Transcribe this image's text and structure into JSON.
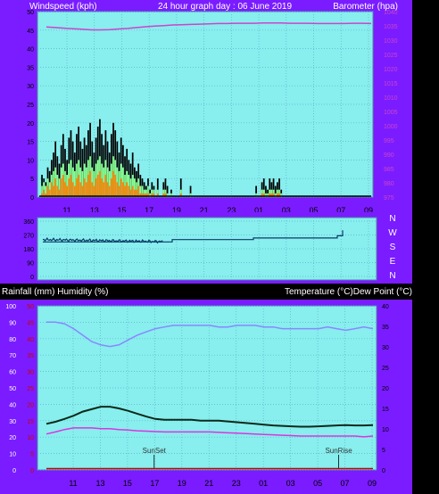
{
  "colors": {
    "frame": "#7a1cff",
    "plot_bg": "#88eeee",
    "grid": "#5fb3c6",
    "axis_text": "#000000",
    "header_text": "#ffffff",
    "pressure": "#cc44cc",
    "gust": "#000000",
    "wind_avg": "#88ff88",
    "wind_low": "#ff8800",
    "wind_dir": "#0b3a66",
    "rain": "#cc0000",
    "humidity": "#8888ff",
    "temperature": "#0a2a1a",
    "dewpoint": "#dd33dd"
  },
  "header": {
    "left": "Windspeed (kph)",
    "center": "24 hour graph day : 06 June 2019",
    "right": "Barometer (hpa)"
  },
  "compass": [
    "N",
    "W",
    "S",
    "E",
    "N"
  ],
  "panel3_header": {
    "left": "Rainfall (mm)  Humidity (%)",
    "right": "Temperature (°C)Dew Point (°C)"
  },
  "chart_data": [
    {
      "type": "bar",
      "name": "wind-pressure",
      "x_ticks": [
        "11",
        "13",
        "15",
        "17",
        "19",
        "21",
        "23",
        "01",
        "03",
        "05",
        "07",
        "09"
      ],
      "y_left": {
        "label": "Windspeed (kph)",
        "ylim": [
          0,
          50
        ],
        "ticks": [
          0,
          5,
          10,
          15,
          20,
          25,
          30,
          35,
          40,
          45,
          50
        ]
      },
      "y_right": {
        "label": "Barometer (hpa)",
        "ylim": [
          975,
          1040
        ],
        "ticks": [
          975,
          980,
          985,
          990,
          995,
          1000,
          1005,
          1010,
          1015,
          1020,
          1025,
          1030,
          1035,
          1040
        ]
      },
      "series": [
        {
          "name": "gust",
          "values": [
            0,
            6,
            5,
            4,
            8,
            7,
            10,
            12,
            15,
            11,
            9,
            14,
            17,
            13,
            10,
            16,
            18,
            15,
            12,
            17,
            19,
            15,
            13,
            16,
            14,
            18,
            20,
            15,
            12,
            16,
            19,
            21,
            17,
            14,
            18,
            15,
            12,
            17,
            20,
            18,
            15,
            12,
            16,
            14,
            11,
            13,
            10,
            9,
            12,
            8,
            7,
            9,
            6,
            5,
            4,
            3,
            5,
            2,
            4,
            3,
            0,
            5,
            0,
            0,
            4,
            5,
            3,
            0,
            2,
            0,
            0,
            0,
            0,
            5,
            0,
            0,
            0,
            0,
            3,
            0,
            0,
            0,
            0,
            0,
            0,
            0,
            0,
            0,
            0,
            0,
            0,
            0,
            0,
            0,
            0,
            0,
            0,
            0,
            0,
            0,
            0,
            0,
            0,
            0,
            0,
            0,
            0,
            0,
            0,
            0,
            0,
            0,
            3,
            0,
            0,
            4,
            5,
            3,
            2,
            5,
            4,
            5,
            3,
            4,
            5,
            2,
            0,
            0,
            0,
            0,
            0,
            0,
            0,
            0,
            0,
            0,
            0,
            0,
            0,
            0,
            0,
            0,
            0,
            0,
            0,
            0,
            0,
            0,
            0,
            0,
            0,
            0,
            0,
            0,
            0,
            0,
            0,
            0,
            0,
            0,
            0,
            0,
            0,
            0,
            0,
            0,
            0,
            0,
            0,
            0,
            0,
            0
          ]
        },
        {
          "name": "average",
          "values": [
            0,
            3,
            4,
            3,
            5,
            4,
            6,
            7,
            8,
            6,
            5,
            8,
            9,
            7,
            6,
            9,
            10,
            8,
            7,
            9,
            10,
            8,
            7,
            9,
            8,
            10,
            11,
            8,
            7,
            9,
            10,
            11,
            9,
            8,
            10,
            8,
            7,
            9,
            11,
            10,
            8,
            7,
            9,
            8,
            6,
            7,
            6,
            5,
            6,
            5,
            4,
            5,
            3,
            3,
            2,
            2,
            3,
            1,
            2,
            2,
            0,
            2,
            0,
            0,
            2,
            2,
            1,
            0,
            1,
            0,
            0,
            0,
            0,
            2,
            0,
            0,
            0,
            0,
            1,
            0,
            0,
            0,
            0,
            0,
            0,
            0,
            0,
            0,
            0,
            0,
            0,
            0,
            0,
            0,
            0,
            0,
            0,
            0,
            0,
            0,
            0,
            0,
            0,
            0,
            0,
            0,
            0,
            0,
            0,
            0,
            0,
            0,
            1,
            0,
            0,
            2,
            2,
            1,
            1,
            2,
            2,
            2,
            1,
            2,
            2,
            1,
            0,
            0,
            0,
            0,
            0,
            0,
            0,
            0,
            0,
            0,
            0,
            0,
            0,
            0,
            0,
            0,
            0,
            0,
            0,
            0,
            0,
            0,
            0,
            0,
            0,
            0,
            0,
            0,
            0,
            0,
            0,
            0,
            0,
            0,
            0,
            0,
            0,
            0,
            0,
            0,
            0,
            0,
            0,
            0,
            0,
            0
          ]
        },
        {
          "name": "low",
          "values": [
            0,
            1,
            2,
            1,
            3,
            2,
            4,
            3,
            5,
            3,
            2,
            5,
            6,
            4,
            3,
            5,
            6,
            4,
            3,
            5,
            6,
            4,
            3,
            5,
            4,
            6,
            7,
            4,
            3,
            5,
            6,
            7,
            5,
            4,
            6,
            4,
            3,
            5,
            7,
            6,
            4,
            3,
            5,
            4,
            3,
            4,
            3,
            2,
            3,
            2,
            2,
            3,
            1,
            1,
            1,
            1,
            1,
            0,
            1,
            1,
            0,
            1,
            0,
            0,
            1,
            1,
            0,
            0,
            0,
            0,
            0,
            0,
            0,
            1,
            0,
            0,
            0,
            0,
            0,
            0,
            0,
            0,
            0,
            0,
            0,
            0,
            0,
            0,
            0,
            0,
            0,
            0,
            0,
            0,
            0,
            0,
            0,
            0,
            0,
            0,
            0,
            0,
            0,
            0,
            0,
            0,
            0,
            0,
            0,
            0,
            0,
            0,
            0,
            0,
            0,
            1,
            1,
            0,
            0,
            1,
            1,
            1,
            0,
            1,
            1,
            0,
            0,
            0,
            0,
            0,
            0,
            0,
            0,
            0,
            0,
            0,
            0,
            0,
            0,
            0,
            0,
            0,
            0,
            0,
            0,
            0,
            0,
            0,
            0,
            0,
            0,
            0,
            0,
            0,
            0,
            0,
            0,
            0,
            0,
            0,
            0,
            0,
            0,
            0,
            0,
            0,
            0,
            0,
            0,
            0,
            0,
            0
          ]
        },
        {
          "name": "pressure",
          "axis": "right",
          "values": [
            1034.6,
            1034.4,
            1034.2,
            1034,
            1033.8,
            1033.6,
            1033.6,
            1033.7,
            1033.9,
            1034.1,
            1034.4,
            1034.7,
            1034.9,
            1035.1,
            1035.3,
            1035.4,
            1035.5,
            1035.6,
            1035.7,
            1035.8,
            1035.8,
            1035.9,
            1035.9,
            1035.9,
            1036,
            1036,
            1036,
            1035.9,
            1035.9,
            1035.9,
            1035.8,
            1035.8,
            1035.8,
            1035.8,
            1035.9,
            1035.9,
            1035.8
          ]
        }
      ]
    },
    {
      "type": "line",
      "name": "wind-direction",
      "y_ticks": [
        "360",
        "270",
        "180",
        "90",
        "0"
      ],
      "ylim": [
        0,
        360
      ],
      "steps": [
        [
          0,
          225
        ],
        [
          145,
          225
        ],
        [
          145,
          240
        ],
        [
          236,
          240
        ],
        [
          236,
          250
        ],
        [
          330,
          250
        ],
        [
          330,
          265
        ],
        [
          336,
          265
        ],
        [
          336,
          300
        ]
      ],
      "noisy_start": 0,
      "noisy_end": 135
    },
    {
      "type": "line",
      "name": "temp-humidity",
      "x_ticks": [
        "11",
        "13",
        "15",
        "17",
        "19",
        "21",
        "23",
        "01",
        "03",
        "05",
        "07",
        "09"
      ],
      "y_left": {
        "label": "Humidity (%)",
        "ylim": [
          0,
          100
        ],
        "ticks": [
          0,
          10,
          20,
          30,
          40,
          50,
          60,
          70,
          80,
          90,
          100
        ]
      },
      "y_left_rain": {
        "label": "Rainfall (mm)",
        "ylim": [
          0,
          50
        ],
        "ticks": [
          0,
          5,
          10,
          15,
          20,
          25,
          30,
          35,
          40,
          45,
          50
        ]
      },
      "y_right": {
        "label": "Temperature (°C)",
        "ylim": [
          0,
          40
        ],
        "ticks": [
          0,
          5,
          10,
          15,
          20,
          25,
          30,
          35,
          40
        ]
      },
      "annotations": [
        {
          "label": "SunSet",
          "x": 0.33
        },
        {
          "label": "SunRise",
          "x": 0.895
        }
      ],
      "series": [
        {
          "name": "Humidity",
          "axis": "left",
          "values": [
            90,
            90,
            89,
            86,
            82,
            78,
            76,
            75,
            76,
            79,
            82,
            84,
            86,
            87,
            88,
            88,
            88,
            88,
            88,
            87,
            87,
            88,
            88,
            88,
            87,
            87,
            86,
            86,
            86,
            86,
            86,
            87,
            86,
            85,
            86,
            87,
            86
          ]
        },
        {
          "name": "Temperature",
          "axis": "right",
          "values": [
            11,
            11.5,
            12.2,
            13,
            14,
            14.6,
            15.2,
            15.2,
            14.8,
            14.2,
            13.5,
            12.8,
            12.2,
            12,
            12,
            12,
            12,
            11.8,
            11.8,
            11.8,
            11.6,
            11.4,
            11.2,
            11,
            10.8,
            10.6,
            10.5,
            10.4,
            10.3,
            10.3,
            10.4,
            10.5,
            10.6,
            10.7,
            10.6,
            10.6,
            10.7
          ]
        },
        {
          "name": "Dew Point",
          "axis": "right",
          "values": [
            8.5,
            9,
            9.6,
            10,
            10,
            10,
            9.8,
            9.8,
            9.6,
            9.5,
            9.3,
            9.2,
            9.1,
            9,
            9,
            9,
            9,
            9,
            9,
            8.9,
            8.8,
            8.7,
            8.6,
            8.5,
            8.4,
            8.3,
            8.2,
            8.1,
            8,
            8,
            8,
            8,
            8,
            8,
            8,
            7.8,
            8
          ]
        },
        {
          "name": "Rainfall",
          "axis": "left_rain",
          "values": [
            0,
            0,
            0,
            0,
            0,
            0,
            0,
            0,
            0,
            0,
            0,
            0,
            0,
            0,
            0,
            0,
            0,
            0,
            0,
            0,
            0,
            0,
            0,
            0,
            0,
            0,
            0,
            0,
            0,
            0,
            0,
            0,
            0,
            0,
            0,
            0,
            0
          ]
        }
      ]
    }
  ]
}
